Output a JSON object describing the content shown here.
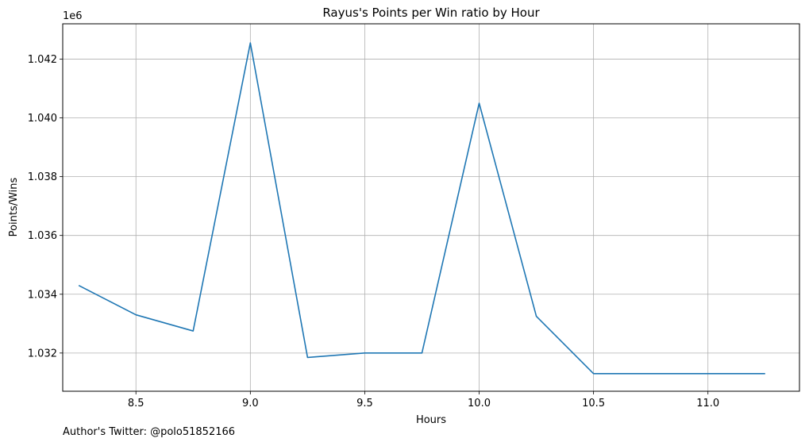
{
  "chart_data": {
    "type": "line",
    "title": "Rayus's Points per Win ratio by Hour",
    "xlabel": "Hours",
    "ylabel": "Points/Wins",
    "offset_text": "1e6",
    "xlim": [
      8.18,
      11.4
    ],
    "ylim": [
      1030.7,
      1043.2
    ],
    "x_ticks": [
      8.5,
      9.0,
      9.5,
      10.0,
      10.5,
      11.0
    ],
    "x_tick_labels": [
      "8.5",
      "9.0",
      "9.5",
      "10.0",
      "10.5",
      "11.0"
    ],
    "y_ticks": [
      1032,
      1034,
      1036,
      1038,
      1040,
      1042
    ],
    "y_tick_labels": [
      "1.032",
      "1.034",
      "1.036",
      "1.038",
      "1.040",
      "1.042"
    ],
    "grid": true,
    "series": [
      {
        "color": "#1f77b4",
        "x": [
          8.25,
          8.5,
          8.75,
          9.0,
          9.25,
          9.5,
          9.75,
          10.0,
          10.25,
          10.5,
          10.75,
          11.0,
          11.25
        ],
        "y": [
          1034.3,
          1033.3,
          1032.75,
          1042.55,
          1031.85,
          1032.0,
          1032.0,
          1040.5,
          1033.25,
          1031.3,
          1031.3,
          1031.3,
          1031.3
        ]
      }
    ]
  },
  "footer_text": "Author's Twitter: @polo51852166"
}
